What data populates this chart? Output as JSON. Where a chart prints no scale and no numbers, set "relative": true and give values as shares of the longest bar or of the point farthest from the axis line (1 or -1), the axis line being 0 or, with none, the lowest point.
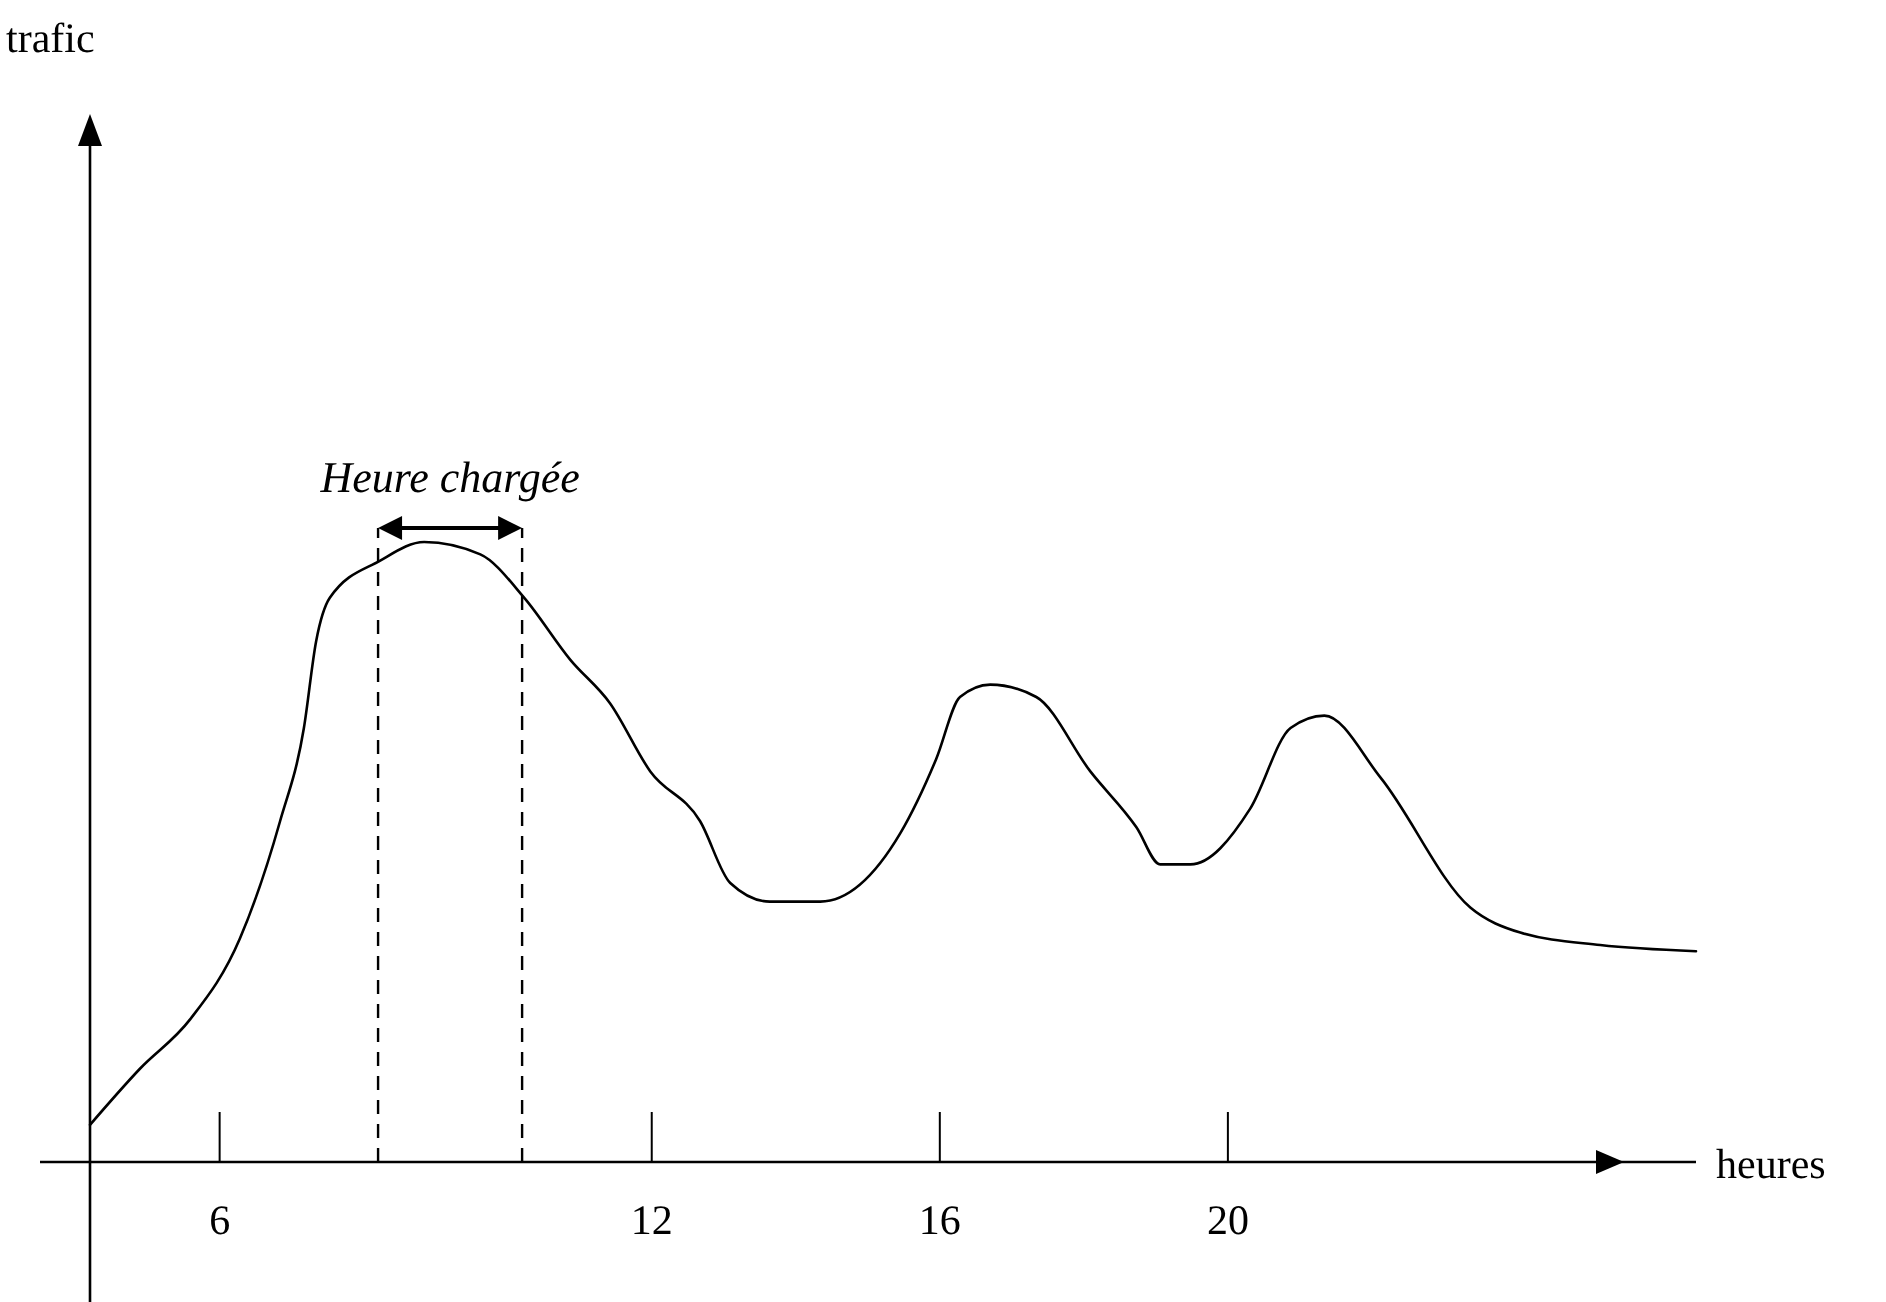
{
  "chart_data": {
    "type": "line",
    "xlabel": "heures",
    "relative": true,
    "grid": false,
    "marker": "none",
    "line_style": "solid",
    "tick_labels": "x",
    "xlim": [
      4.2,
      26.5
    ],
    "xticks": [
      6,
      12,
      16,
      20
    ],
    "ref_lines": [
      {
        "axis": "x",
        "value": 8.2,
        "line_style": "dashed"
      },
      {
        "axis": "x",
        "value": 10.2,
        "line_style": "dashed"
      }
    ],
    "annotations": [
      "trafic",
      "Heure chargée"
    ],
    "series": [
      {
        "color": "#000000",
        "x": [
          4.2,
          4.89,
          5.59,
          6.28,
          6.84,
          7.17,
          7.34,
          7.53,
          8.23,
          8.84,
          9.62,
          10.23,
          10.87,
          11.42,
          11.98,
          12.67,
          13.09,
          13.64,
          14.34,
          15.45,
          15.95,
          16.28,
          16.7,
          17.34,
          18.09,
          18.73,
          19.06,
          19.48,
          20.31,
          20.87,
          21.34,
          22.12,
          23.37,
          24.06,
          25.17,
          26.5
        ],
        "values": [
          0.06,
          0.15,
          0.23,
          0.36,
          0.55,
          0.7,
          0.84,
          0.91,
          0.97,
          1.0,
          0.98,
          0.91,
          0.81,
          0.74,
          0.63,
          0.55,
          0.45,
          0.42,
          0.42,
          0.53,
          0.65,
          0.75,
          0.77,
          0.75,
          0.63,
          0.54,
          0.48,
          0.48,
          0.57,
          0.7,
          0.72,
          0.62,
          0.41,
          0.37,
          0.35,
          0.34
        ]
      }
    ]
  }
}
